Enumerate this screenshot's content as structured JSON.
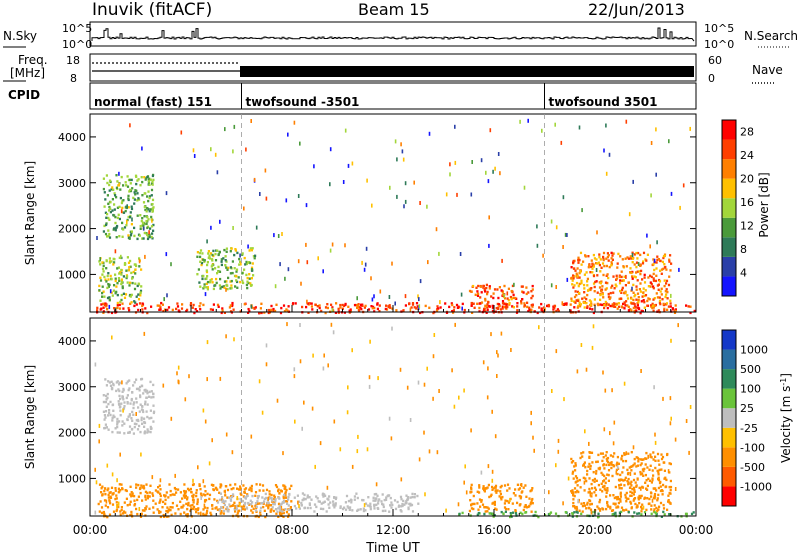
{
  "header": {
    "station": "Inuvik (fitACF)",
    "beam": "Beam 15",
    "date": "22/Jun/2013"
  },
  "top_panel": {
    "left_label": "N.Sky",
    "right_label": "N.Search",
    "left_ticks": [
      "10^5",
      "10^0"
    ],
    "right_ticks": [
      "10^5",
      "10^0"
    ]
  },
  "freq_panel": {
    "left_label_1": "Freq.",
    "left_label_2": "[MHz]",
    "left_ticks": [
      "18",
      "8"
    ],
    "right_ticks": [
      "60",
      "0"
    ],
    "right_label": "Nave"
  },
  "cpid": {
    "label": "CPID",
    "segments": [
      {
        "name": "normal (fast) 151",
        "start_hour": 0,
        "end_hour": 6
      },
      {
        "name": "twofsound -3501",
        "start_hour": 6,
        "end_hour": 18
      },
      {
        "name": "twofsound 3501",
        "start_hour": 18,
        "end_hour": 24
      }
    ]
  },
  "colors": {
    "power_scale": [
      "#1414ff",
      "#2a3fa8",
      "#2e7a58",
      "#4a9a3a",
      "#a2d63a",
      "#ffc000",
      "#ff7f00",
      "#ff3f00",
      "#ff0000"
    ],
    "velocity_scale": [
      "#1438c8",
      "#2a6ea0",
      "#2e8a5a",
      "#6ac43a",
      "#bebebe",
      "#ffc000",
      "#ff8f00",
      "#ff5a00",
      "#ff0000"
    ]
  },
  "chart_data": [
    {
      "type": "heatmap",
      "title": "",
      "xlabel": "",
      "ylabel": "Slant Range [km]",
      "xlim": [
        0,
        24
      ],
      "ylim": [
        180,
        4500
      ],
      "x_ticks": [],
      "y_ticks": [
        "1000",
        "2000",
        "3000",
        "4000"
      ],
      "colorbar": {
        "label": "Power [dB]",
        "ticks": [
          "4",
          "8",
          "12",
          "16",
          "20",
          "24",
          "28"
        ],
        "range": [
          0,
          30
        ]
      },
      "regions": [
        {
          "t0": 0.2,
          "t1": 24.0,
          "r0": 180,
          "r1": 400,
          "value": 26,
          "description": "near-range echoes"
        },
        {
          "t0": 0.3,
          "t1": 2.0,
          "r0": 400,
          "r1": 1400,
          "value": 14
        },
        {
          "t0": 0.5,
          "t1": 2.5,
          "r0": 1800,
          "r1": 3200,
          "value": 12
        },
        {
          "t0": 4.2,
          "t1": 6.5,
          "r0": 700,
          "r1": 1600,
          "value": 14
        },
        {
          "t0": 15.0,
          "t1": 17.5,
          "r0": 300,
          "r1": 800,
          "value": 24
        },
        {
          "t0": 19.0,
          "t1": 23.0,
          "r0": 300,
          "r1": 1500,
          "value": 22
        }
      ]
    },
    {
      "type": "heatmap",
      "title": "",
      "xlabel": "Time UT",
      "ylabel": "Slant Range [km]",
      "xlim": [
        0,
        24
      ],
      "ylim": [
        180,
        4500
      ],
      "x_ticks": [
        "00:00",
        "04:00",
        "08:00",
        "12:00",
        "16:00",
        "20:00",
        "00:00"
      ],
      "y_ticks": [
        "1000",
        "2000",
        "3000",
        "4000"
      ],
      "colorbar": {
        "label": "Velocity [m s^-1]",
        "ticks": [
          "1000",
          "500",
          "100",
          "25",
          "-25",
          "-100",
          "-500",
          "-1000"
        ]
      },
      "regions": [
        {
          "t0": 0.3,
          "t1": 8.0,
          "r0": 180,
          "r1": 900,
          "value": -300
        },
        {
          "t0": 5.0,
          "t1": 13.0,
          "r0": 300,
          "r1": 700,
          "value": 0
        },
        {
          "t0": 0.5,
          "t1": 2.5,
          "r0": 2000,
          "r1": 3200,
          "value": 0
        },
        {
          "t0": 15.0,
          "t1": 17.5,
          "r0": 300,
          "r1": 900,
          "value": -400
        },
        {
          "t0": 19.0,
          "t1": 23.0,
          "r0": 300,
          "r1": 1600,
          "value": -400
        },
        {
          "t0": 14.5,
          "t1": 24.0,
          "r0": 180,
          "r1": 300,
          "value": 100
        }
      ]
    }
  ]
}
